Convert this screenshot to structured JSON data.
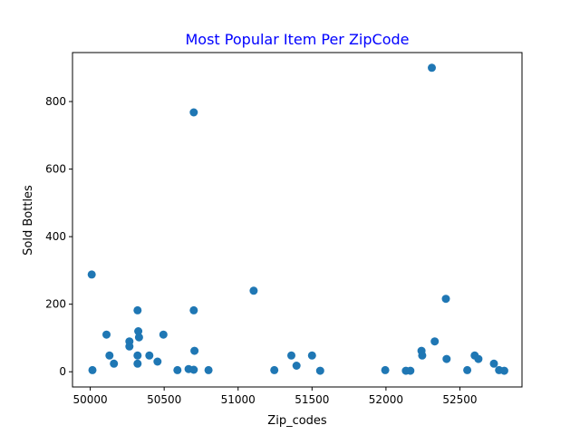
{
  "chart_data": {
    "type": "scatter",
    "title": "Most Popular Item Per ZipCode",
    "xlabel": "Zip_codes",
    "ylabel": "Sold Bottles",
    "xlim": [
      49880,
      52920
    ],
    "ylim": [
      -45,
      945
    ],
    "xticks": [
      50000,
      50500,
      51000,
      51500,
      52000,
      52500
    ],
    "yticks": [
      0,
      200,
      400,
      600,
      800
    ],
    "grid": false,
    "color": "#1f77b4",
    "points": [
      {
        "x": 50010,
        "y": 288
      },
      {
        "x": 50015,
        "y": 5
      },
      {
        "x": 50110,
        "y": 110
      },
      {
        "x": 50130,
        "y": 48
      },
      {
        "x": 50160,
        "y": 24
      },
      {
        "x": 50265,
        "y": 90
      },
      {
        "x": 50265,
        "y": 75
      },
      {
        "x": 50320,
        "y": 182
      },
      {
        "x": 50320,
        "y": 48
      },
      {
        "x": 50320,
        "y": 24
      },
      {
        "x": 50325,
        "y": 120
      },
      {
        "x": 50330,
        "y": 102
      },
      {
        "x": 50400,
        "y": 48
      },
      {
        "x": 50455,
        "y": 30
      },
      {
        "x": 50495,
        "y": 110
      },
      {
        "x": 50590,
        "y": 5
      },
      {
        "x": 50665,
        "y": 8
      },
      {
        "x": 50700,
        "y": 768
      },
      {
        "x": 50700,
        "y": 182
      },
      {
        "x": 50705,
        "y": 62
      },
      {
        "x": 50700,
        "y": 6
      },
      {
        "x": 50800,
        "y": 5
      },
      {
        "x": 51105,
        "y": 240
      },
      {
        "x": 51245,
        "y": 5
      },
      {
        "x": 51360,
        "y": 48
      },
      {
        "x": 51395,
        "y": 18
      },
      {
        "x": 51500,
        "y": 48
      },
      {
        "x": 51555,
        "y": 3
      },
      {
        "x": 51995,
        "y": 5
      },
      {
        "x": 52135,
        "y": 3
      },
      {
        "x": 52165,
        "y": 3
      },
      {
        "x": 52240,
        "y": 62
      },
      {
        "x": 52245,
        "y": 48
      },
      {
        "x": 52310,
        "y": 900
      },
      {
        "x": 52330,
        "y": 90
      },
      {
        "x": 52405,
        "y": 216
      },
      {
        "x": 52410,
        "y": 38
      },
      {
        "x": 52550,
        "y": 5
      },
      {
        "x": 52600,
        "y": 48
      },
      {
        "x": 52625,
        "y": 38
      },
      {
        "x": 52730,
        "y": 24
      },
      {
        "x": 52765,
        "y": 5
      },
      {
        "x": 52800,
        "y": 3
      }
    ]
  }
}
